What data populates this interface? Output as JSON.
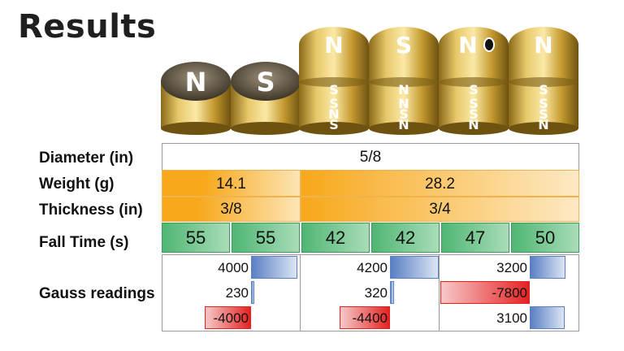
{
  "title": "Results",
  "magnets": [
    {
      "top": "N"
    },
    {
      "top": "S"
    },
    {
      "top": "N",
      "mid": "S",
      "low": [
        "S",
        "N",
        "S"
      ]
    },
    {
      "top": "S",
      "mid": "N",
      "low": [
        "N",
        "S",
        "N"
      ]
    },
    {
      "top": "N",
      "mid": "S",
      "low": [
        "S",
        "S",
        "N"
      ],
      "dot": true
    },
    {
      "top": "N",
      "mid": "S",
      "low": [
        "S",
        "S",
        "N"
      ]
    }
  ],
  "table": {
    "diameter_label": "Diameter (in)",
    "diameter_value": "5/8",
    "weight_label": "Weight (g)",
    "weight_values": [
      "14.1",
      "28.2"
    ],
    "thickness_label": "Thickness (in)",
    "thickness_values": [
      "3/8",
      "3/4"
    ],
    "fall_label": "Fall Time (s)",
    "fall_values": [
      "55",
      "55",
      "42",
      "42",
      "47",
      "50"
    ],
    "gauss_label": "Gauss readings",
    "gauss": [
      [
        "4000",
        "230",
        "-4000"
      ],
      [
        "4200",
        "320",
        "-4400"
      ],
      [
        "3200",
        "-7800",
        "3100"
      ]
    ]
  },
  "colors": {
    "orange": "#f7a81b",
    "green": "#4fb673",
    "blue": "#5a7fc3",
    "red": "#e52222",
    "gold": "#c9a23a"
  }
}
